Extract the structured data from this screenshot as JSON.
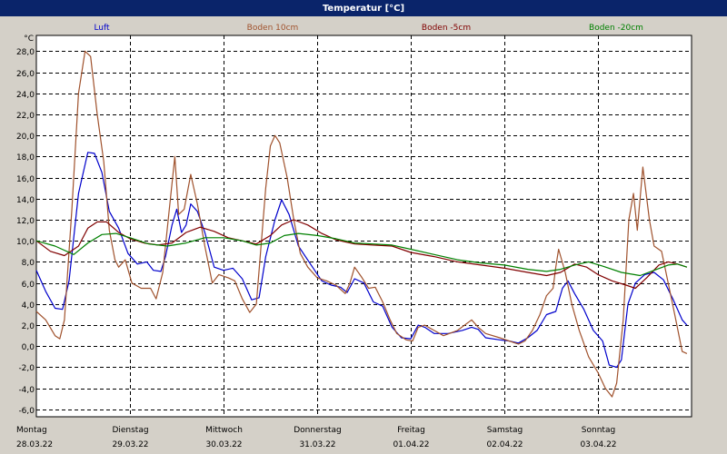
{
  "window": {
    "title": "Temperatur [°C]"
  },
  "chart_data": {
    "type": "line",
    "title": "Temperatur [°C]",
    "ylabel": "°C",
    "xlabel": "",
    "ylim": [
      -6.7,
      29.5
    ],
    "xlim": [
      0,
      7
    ],
    "grid": true,
    "legend": "top",
    "y_ticks": [
      "28,0",
      "26,0",
      "24,0",
      "22,0",
      "20,0",
      "18,0",
      "16,0",
      "14,0",
      "12,0",
      "10,0",
      "8,0",
      "6,0",
      "4,0",
      "2,0",
      "0,0",
      "-2,0",
      "-4,0",
      "-6,0"
    ],
    "y_tick_values": [
      28,
      26,
      24,
      22,
      20,
      18,
      16,
      14,
      12,
      10,
      8,
      6,
      4,
      2,
      0,
      -2,
      -4,
      -6
    ],
    "x_ticks": [
      {
        "day": "Montag",
        "date": "28.03.22",
        "x": 0
      },
      {
        "day": "Dienstag",
        "date": "29.03.22",
        "x": 1
      },
      {
        "day": "Mittwoch",
        "date": "30.03.22",
        "x": 2
      },
      {
        "day": "Donnerstag",
        "date": "31.03.22",
        "x": 3
      },
      {
        "day": "Freitag",
        "date": "01.04.22",
        "x": 4
      },
      {
        "day": "Samstag",
        "date": "02.04.22",
        "x": 5
      },
      {
        "day": "Sonntag",
        "date": "03.04.22",
        "x": 6
      }
    ],
    "series": [
      {
        "name": "Luft",
        "color": "#0000cc",
        "points": [
          [
            0,
            7.2
          ],
          [
            0.1,
            5.2
          ],
          [
            0.2,
            3.6
          ],
          [
            0.28,
            3.5
          ],
          [
            0.35,
            6.2
          ],
          [
            0.45,
            14.5
          ],
          [
            0.55,
            18.4
          ],
          [
            0.62,
            18.3
          ],
          [
            0.7,
            16.5
          ],
          [
            0.78,
            12.8
          ],
          [
            0.88,
            11.2
          ],
          [
            0.98,
            8.8
          ],
          [
            1.08,
            7.8
          ],
          [
            1.18,
            8
          ],
          [
            1.25,
            7.2
          ],
          [
            1.33,
            7.1
          ],
          [
            1.38,
            8.5
          ],
          [
            1.45,
            11.5
          ],
          [
            1.5,
            13
          ],
          [
            1.55,
            10.8
          ],
          [
            1.6,
            11.5
          ],
          [
            1.65,
            13.5
          ],
          [
            1.72,
            12.8
          ],
          [
            1.8,
            10.8
          ],
          [
            1.9,
            7.5
          ],
          [
            2,
            7.2
          ],
          [
            2.1,
            7.4
          ],
          [
            2.2,
            6.4
          ],
          [
            2.3,
            4.4
          ],
          [
            2.38,
            4.6
          ],
          [
            2.45,
            8.5
          ],
          [
            2.55,
            12
          ],
          [
            2.62,
            13.9
          ],
          [
            2.7,
            12.5
          ],
          [
            2.8,
            9.5
          ],
          [
            2.95,
            7.5
          ],
          [
            3.05,
            6.2
          ],
          [
            3.15,
            5.8
          ],
          [
            3.25,
            5.6
          ],
          [
            3.32,
            5.1
          ],
          [
            3.4,
            6.4
          ],
          [
            3.5,
            6
          ],
          [
            3.6,
            4.2
          ],
          [
            3.7,
            3.8
          ],
          [
            3.8,
            1.8
          ],
          [
            3.9,
            0.8
          ],
          [
            4,
            0.7
          ],
          [
            4.08,
            2
          ],
          [
            4.15,
            1.8
          ],
          [
            4.25,
            1.2
          ],
          [
            4.4,
            1.2
          ],
          [
            4.55,
            1.5
          ],
          [
            4.65,
            1.8
          ],
          [
            4.72,
            1.6
          ],
          [
            4.8,
            0.8
          ],
          [
            4.95,
            0.6
          ],
          [
            5.05,
            0.5
          ],
          [
            5.15,
            0.3
          ],
          [
            5.25,
            0.8
          ],
          [
            5.35,
            1.5
          ],
          [
            5.45,
            3
          ],
          [
            5.55,
            3.3
          ],
          [
            5.62,
            5.5
          ],
          [
            5.68,
            6.2
          ],
          [
            5.75,
            5
          ],
          [
            5.85,
            3.5
          ],
          [
            5.95,
            1.5
          ],
          [
            6.05,
            0.5
          ],
          [
            6.12,
            -1.8
          ],
          [
            6.2,
            -2
          ],
          [
            6.25,
            -1.3
          ],
          [
            6.32,
            4
          ],
          [
            6.4,
            6
          ],
          [
            6.5,
            6.8
          ],
          [
            6.6,
            7
          ],
          [
            6.7,
            6.3
          ],
          [
            6.8,
            4.5
          ],
          [
            6.9,
            2.5
          ],
          [
            6.95,
            2
          ]
        ]
      },
      {
        "name": "Boden 10cm",
        "color": "#a0522d",
        "points": [
          [
            0,
            3.3
          ],
          [
            0.1,
            2.5
          ],
          [
            0.2,
            1
          ],
          [
            0.25,
            0.7
          ],
          [
            0.3,
            2.5
          ],
          [
            0.38,
            13
          ],
          [
            0.45,
            24
          ],
          [
            0.52,
            28
          ],
          [
            0.58,
            27.5
          ],
          [
            0.65,
            22
          ],
          [
            0.72,
            17.5
          ],
          [
            0.78,
            11
          ],
          [
            0.84,
            8.2
          ],
          [
            0.88,
            7.5
          ],
          [
            0.95,
            8.2
          ],
          [
            1.02,
            6
          ],
          [
            1.12,
            5.5
          ],
          [
            1.22,
            5.5
          ],
          [
            1.28,
            4.5
          ],
          [
            1.35,
            7
          ],
          [
            1.42,
            13
          ],
          [
            1.48,
            18
          ],
          [
            1.52,
            12.5
          ],
          [
            1.58,
            13
          ],
          [
            1.65,
            16.3
          ],
          [
            1.72,
            13.5
          ],
          [
            1.8,
            9.5
          ],
          [
            1.88,
            6
          ],
          [
            1.95,
            6.8
          ],
          [
            2.05,
            6.5
          ],
          [
            2.12,
            6.2
          ],
          [
            2.2,
            4.5
          ],
          [
            2.28,
            3.2
          ],
          [
            2.35,
            4
          ],
          [
            2.45,
            15
          ],
          [
            2.5,
            19
          ],
          [
            2.55,
            20
          ],
          [
            2.6,
            19.3
          ],
          [
            2.68,
            16
          ],
          [
            2.75,
            12
          ],
          [
            2.82,
            8.8
          ],
          [
            2.9,
            7.5
          ],
          [
            3,
            6.5
          ],
          [
            3.1,
            6.2
          ],
          [
            3.2,
            5.8
          ],
          [
            3.3,
            5
          ],
          [
            3.35,
            6
          ],
          [
            3.4,
            7.5
          ],
          [
            3.48,
            6.5
          ],
          [
            3.55,
            5.5
          ],
          [
            3.62,
            5.6
          ],
          [
            3.7,
            4.2
          ],
          [
            3.78,
            2.5
          ],
          [
            3.85,
            1.2
          ],
          [
            3.95,
            0.6
          ],
          [
            4.02,
            0.5
          ],
          [
            4.08,
            1.8
          ],
          [
            4.15,
            2
          ],
          [
            4.25,
            1.5
          ],
          [
            4.35,
            1
          ],
          [
            4.5,
            1.5
          ],
          [
            4.65,
            2.5
          ],
          [
            4.72,
            1.8
          ],
          [
            4.8,
            1.2
          ],
          [
            4.95,
            0.8
          ],
          [
            5.05,
            0.5
          ],
          [
            5.15,
            0.2
          ],
          [
            5.22,
            0.5
          ],
          [
            5.3,
            1.5
          ],
          [
            5.38,
            3
          ],
          [
            5.45,
            4.8
          ],
          [
            5.52,
            5.5
          ],
          [
            5.55,
            7.5
          ],
          [
            5.58,
            9.2
          ],
          [
            5.65,
            7
          ],
          [
            5.72,
            4
          ],
          [
            5.8,
            1.5
          ],
          [
            5.9,
            -1
          ],
          [
            6,
            -2.5
          ],
          [
            6.08,
            -4
          ],
          [
            6.15,
            -4.8
          ],
          [
            6.2,
            -3.5
          ],
          [
            6.27,
            2.5
          ],
          [
            6.33,
            12
          ],
          [
            6.38,
            14.5
          ],
          [
            6.42,
            11
          ],
          [
            6.48,
            17
          ],
          [
            6.55,
            12
          ],
          [
            6.6,
            9.5
          ],
          [
            6.68,
            9
          ],
          [
            6.75,
            6
          ],
          [
            6.82,
            3
          ],
          [
            6.9,
            -0.5
          ],
          [
            6.95,
            -0.7
          ]
        ]
      },
      {
        "name": "Boden -5cm",
        "color": "#800000",
        "points": [
          [
            0,
            10
          ],
          [
            0.15,
            9
          ],
          [
            0.3,
            8.6
          ],
          [
            0.45,
            9.5
          ],
          [
            0.55,
            11.2
          ],
          [
            0.65,
            11.8
          ],
          [
            0.75,
            11.8
          ],
          [
            0.88,
            10.8
          ],
          [
            1,
            10.2
          ],
          [
            1.15,
            9.8
          ],
          [
            1.3,
            9.6
          ],
          [
            1.45,
            9.8
          ],
          [
            1.6,
            10.8
          ],
          [
            1.75,
            11.3
          ],
          [
            1.9,
            10.9
          ],
          [
            2.05,
            10.3
          ],
          [
            2.2,
            10
          ],
          [
            2.35,
            9.7
          ],
          [
            2.5,
            10.5
          ],
          [
            2.62,
            11.5
          ],
          [
            2.75,
            12
          ],
          [
            2.9,
            11.5
          ],
          [
            3.05,
            10.7
          ],
          [
            3.2,
            10.1
          ],
          [
            3.4,
            9.7
          ],
          [
            3.6,
            9.6
          ],
          [
            3.8,
            9.5
          ],
          [
            4,
            8.9
          ],
          [
            4.25,
            8.5
          ],
          [
            4.5,
            8
          ],
          [
            4.75,
            7.7
          ],
          [
            5,
            7.4
          ],
          [
            5.25,
            7
          ],
          [
            5.45,
            6.7
          ],
          [
            5.6,
            7
          ],
          [
            5.75,
            7.8
          ],
          [
            5.88,
            7.5
          ],
          [
            6,
            6.8
          ],
          [
            6.15,
            6.2
          ],
          [
            6.3,
            5.8
          ],
          [
            6.4,
            5.5
          ],
          [
            6.52,
            6.5
          ],
          [
            6.65,
            7.7
          ],
          [
            6.75,
            8
          ],
          [
            6.85,
            7.8
          ],
          [
            6.95,
            7.5
          ]
        ]
      },
      {
        "name": "Boden -20cm",
        "color": "#008000",
        "points": [
          [
            0,
            10
          ],
          [
            0.2,
            9.5
          ],
          [
            0.4,
            8.7
          ],
          [
            0.55,
            9.8
          ],
          [
            0.7,
            10.6
          ],
          [
            0.85,
            10.7
          ],
          [
            1,
            10.3
          ],
          [
            1.2,
            9.7
          ],
          [
            1.4,
            9.5
          ],
          [
            1.6,
            9.8
          ],
          [
            1.8,
            10.3
          ],
          [
            2,
            10.3
          ],
          [
            2.2,
            10
          ],
          [
            2.35,
            9.6
          ],
          [
            2.5,
            9.8
          ],
          [
            2.65,
            10.5
          ],
          [
            2.8,
            10.7
          ],
          [
            3,
            10.5
          ],
          [
            3.2,
            10.2
          ],
          [
            3.4,
            9.8
          ],
          [
            3.6,
            9.7
          ],
          [
            3.8,
            9.6
          ],
          [
            4,
            9.2
          ],
          [
            4.25,
            8.7
          ],
          [
            4.5,
            8.2
          ],
          [
            4.75,
            7.9
          ],
          [
            5,
            7.7
          ],
          [
            5.25,
            7.3
          ],
          [
            5.45,
            7.1
          ],
          [
            5.6,
            7.3
          ],
          [
            5.75,
            7.7
          ],
          [
            5.9,
            8
          ],
          [
            6.05,
            7.6
          ],
          [
            6.25,
            7
          ],
          [
            6.45,
            6.7
          ],
          [
            6.6,
            7.2
          ],
          [
            6.75,
            7.7
          ],
          [
            6.85,
            7.8
          ],
          [
            6.95,
            7.5
          ]
        ]
      }
    ]
  }
}
